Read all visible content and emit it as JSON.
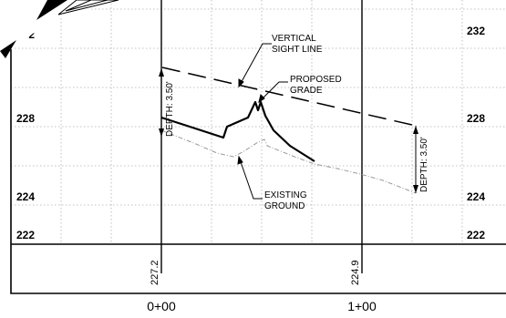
{
  "profile": {
    "elevation_labels_left": [
      "232",
      "228",
      "224",
      "222"
    ],
    "elevation_labels_right": [
      "232",
      "228",
      "224",
      "222"
    ],
    "annotations": {
      "vertical_sight_line": [
        "VERTICAL",
        "SIGHT LINE"
      ],
      "proposed_grade": [
        "PROPOSED",
        "GRADE"
      ],
      "existing_ground": [
        "EXISTING",
        "GROUND"
      ],
      "depth_left": "DEPTH: 3.50'",
      "depth_right": "DEPTH: 3.50'"
    },
    "station_band": {
      "ground_elevations": [
        "227.2",
        "224.9"
      ],
      "stations": [
        "0+00",
        "1+00"
      ]
    }
  },
  "colors": {
    "linework": "#000000",
    "grid": "#b0b0b0",
    "background": "#ffffff"
  }
}
